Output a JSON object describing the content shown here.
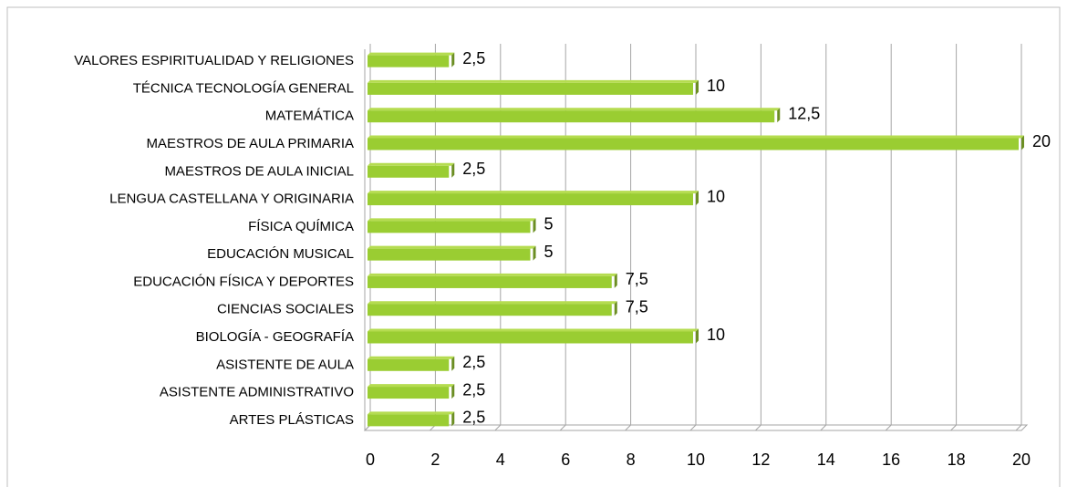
{
  "chart_data": {
    "type": "bar",
    "orientation": "horizontal",
    "categories": [
      "VALORES ESPIRITUALIDAD Y RELIGIONES",
      "TÉCNICA TECNOLOGÍA GENERAL",
      "MATEMÁTICA",
      "MAESTROS DE AULA PRIMARIA",
      "MAESTROS DE AULA INICIAL",
      "LENGUA CASTELLANA Y ORIGINARIA",
      "FÍSICA QUÍMICA",
      "EDUCACIÓN MUSICAL",
      "EDUCACIÓN FÍSICA Y DEPORTES",
      "CIENCIAS SOCIALES",
      "BIOLOGÍA - GEOGRAFÍA",
      "ASISTENTE DE AULA",
      "ASISTENTE ADMINISTRATIVO",
      "ARTES PLÁSTICAS"
    ],
    "values": [
      2.5,
      10,
      12.5,
      20,
      2.5,
      10,
      5,
      5,
      7.5,
      7.5,
      10,
      2.5,
      2.5,
      2.5
    ],
    "value_labels": [
      "2,5",
      "10",
      "12,5",
      "20",
      "2,5",
      "10",
      "5",
      "5",
      "7,5",
      "7,5",
      "10",
      "2,5",
      "2,5",
      "2,5"
    ],
    "color": "#9acd32",
    "xlim": [
      0,
      20
    ],
    "xticks": [
      0,
      2,
      4,
      6,
      8,
      10,
      12,
      14,
      16,
      18,
      20
    ],
    "grid": true
  }
}
